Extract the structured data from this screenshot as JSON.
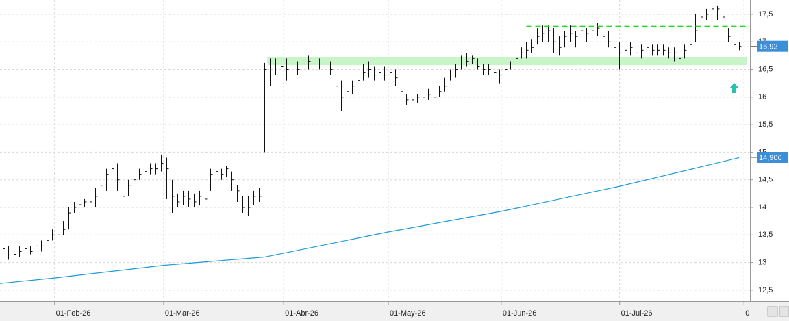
{
  "chart_data": {
    "type": "hlc",
    "xlim": [
      -0.5,
      137
    ],
    "ylim": [
      12.3,
      17.76
    ],
    "xticks": [
      {
        "value": 9.5,
        "label": "01-Feb-26"
      },
      {
        "value": 29.5,
        "label": "01-Mar-26"
      },
      {
        "value": 51.5,
        "label": "01-Abr-26"
      },
      {
        "value": 70.7,
        "label": "01-May-26"
      },
      {
        "value": 91.4,
        "label": "01-Jun-26"
      },
      {
        "value": 113.1,
        "label": "01-Jul-26"
      },
      {
        "value": 135.9,
        "label": "0"
      }
    ],
    "yticks": [
      {
        "value": 12.5,
        "label": "12,5"
      },
      13,
      {
        "value": 13.5,
        "label": "13,5"
      },
      14,
      {
        "value": 14.5,
        "label": "14,5"
      },
      15,
      {
        "value": 15.5,
        "label": "15,5"
      },
      16,
      {
        "value": 16.5,
        "label": "16,5"
      },
      17,
      {
        "value": 17.5,
        "label": "17,5"
      }
    ],
    "grid": true,
    "color": "#111111",
    "high": [
      13.35,
      13.3,
      13.25,
      13.3,
      13.3,
      13.3,
      13.35,
      13.4,
      13.5,
      13.6,
      13.6,
      13.75,
      14.0,
      14.1,
      14.15,
      14.15,
      14.2,
      14.35,
      14.55,
      14.7,
      14.85,
      14.8,
      14.5,
      14.5,
      14.6,
      14.7,
      14.75,
      14.8,
      14.8,
      14.95,
      14.9,
      14.5,
      14.25,
      14.3,
      14.3,
      14.25,
      14.3,
      14.25,
      14.7,
      14.7,
      14.7,
      14.75,
      14.65,
      14.4,
      14.2,
      14.2,
      14.3,
      14.35,
      16.62,
      16.7,
      16.7,
      16.75,
      16.7,
      16.75,
      16.65,
      16.7,
      16.75,
      16.7,
      16.7,
      16.7,
      16.65,
      16.5,
      16.3,
      16.2,
      16.3,
      16.45,
      16.6,
      16.65,
      16.55,
      16.55,
      16.55,
      16.55,
      16.5,
      16.3,
      16.05,
      16.0,
      16.05,
      16.1,
      16.15,
      16.1,
      16.2,
      16.35,
      16.5,
      16.6,
      16.75,
      16.8,
      16.75,
      16.7,
      16.6,
      16.6,
      16.55,
      16.5,
      16.6,
      16.65,
      16.8,
      16.9,
      17.0,
      17.05,
      17.25,
      17.3,
      17.3,
      17.25,
      17.1,
      17.2,
      17.3,
      17.2,
      17.3,
      17.25,
      17.3,
      17.35,
      17.3,
      17.2,
      17.05,
      17.0,
      16.95,
      17.0,
      16.95,
      16.95,
      16.95,
      16.95,
      16.95,
      16.95,
      16.9,
      16.9,
      16.85,
      16.95,
      17.05,
      17.5,
      17.55,
      17.6,
      17.65,
      17.65,
      17.55,
      17.25,
      17.05,
      17.0
    ],
    "low": [
      13.05,
      13.05,
      13.05,
      13.1,
      13.15,
      13.15,
      13.2,
      13.2,
      13.3,
      13.4,
      13.4,
      13.5,
      13.6,
      13.9,
      13.95,
      14.0,
      14.0,
      14.0,
      14.1,
      14.3,
      14.4,
      14.3,
      14.05,
      14.2,
      14.4,
      14.5,
      14.55,
      14.6,
      14.6,
      14.65,
      14.15,
      13.9,
      14.0,
      14.05,
      14.0,
      14.0,
      14.05,
      14.0,
      14.3,
      14.5,
      14.5,
      14.55,
      14.3,
      14.1,
      13.9,
      13.85,
      14.05,
      14.1,
      15.0,
      16.2,
      16.4,
      16.4,
      16.3,
      16.45,
      16.4,
      16.5,
      16.5,
      16.5,
      16.5,
      16.5,
      16.4,
      16.1,
      15.75,
      15.95,
      16.05,
      16.15,
      16.3,
      16.35,
      16.3,
      16.3,
      16.3,
      16.3,
      16.2,
      15.95,
      15.85,
      15.9,
      15.9,
      15.9,
      15.95,
      15.85,
      16.0,
      16.1,
      16.3,
      16.35,
      16.5,
      16.55,
      16.6,
      16.5,
      16.4,
      16.4,
      16.35,
      16.25,
      16.4,
      16.5,
      16.6,
      16.7,
      16.7,
      16.8,
      16.95,
      17.0,
      17.0,
      16.8,
      16.75,
      16.9,
      17.0,
      16.9,
      17.05,
      17.0,
      17.05,
      17.1,
      16.95,
      16.9,
      16.75,
      16.5,
      16.7,
      16.75,
      16.7,
      16.7,
      16.75,
      16.75,
      16.75,
      16.75,
      16.7,
      16.65,
      16.5,
      16.7,
      16.8,
      17.0,
      17.2,
      17.4,
      17.45,
      17.4,
      17.2,
      17.0,
      16.85,
      16.85
    ],
    "close": [
      13.25,
      13.1,
      13.15,
      13.2,
      13.25,
      13.2,
      13.3,
      13.3,
      13.4,
      13.5,
      13.5,
      13.6,
      13.9,
      14.0,
      14.05,
      14.1,
      14.1,
      14.2,
      14.4,
      14.6,
      14.7,
      14.5,
      14.2,
      14.4,
      14.5,
      14.6,
      14.65,
      14.7,
      14.7,
      14.8,
      14.7,
      14.2,
      14.1,
      14.2,
      14.15,
      14.1,
      14.2,
      14.15,
      14.6,
      14.65,
      14.6,
      14.7,
      14.5,
      14.3,
      14.0,
      14.0,
      14.2,
      14.2,
      16.5,
      16.4,
      16.6,
      16.55,
      16.5,
      16.6,
      16.5,
      16.6,
      16.65,
      16.6,
      16.6,
      16.6,
      16.5,
      16.2,
      16.0,
      16.1,
      16.2,
      16.3,
      16.45,
      16.5,
      16.4,
      16.45,
      16.4,
      16.45,
      16.35,
      16.1,
      15.95,
      15.95,
      16.0,
      16.0,
      16.05,
      16.0,
      16.1,
      16.2,
      16.4,
      16.5,
      16.6,
      16.65,
      16.7,
      16.55,
      16.5,
      16.5,
      16.45,
      16.4,
      16.5,
      16.6,
      16.7,
      16.8,
      16.85,
      16.9,
      17.1,
      17.15,
      17.2,
      17.0,
      16.9,
      17.1,
      17.15,
      17.1,
      17.2,
      17.15,
      17.2,
      17.25,
      17.1,
      17.0,
      16.9,
      16.8,
      16.85,
      16.9,
      16.8,
      16.85,
      16.9,
      16.85,
      16.85,
      16.85,
      16.8,
      16.8,
      16.7,
      16.85,
      16.95,
      17.2,
      17.45,
      17.5,
      17.6,
      17.6,
      17.45,
      17.1,
      16.95,
      16.92
    ],
    "moving_average": {
      "color": "#1a9ad6",
      "x": [
        -0.5,
        9.5,
        29.5,
        48,
        70.5,
        91.5,
        113,
        135
      ],
      "values": [
        12.62,
        12.72,
        12.95,
        13.1,
        13.55,
        13.93,
        14.38,
        14.9
      ]
    },
    "resistance": {
      "value": 17.28,
      "x": [
        96,
        136.5
      ],
      "color": "#22dd22"
    },
    "support_band": {
      "from": 16.58,
      "to": 16.72,
      "x": [
        48.5,
        136.5
      ],
      "color": "#c8f5c8"
    },
    "price_labels": [
      {
        "value": 16.92,
        "label": "16,92"
      },
      {
        "value": 14.906,
        "label": "14,906"
      }
    ]
  }
}
